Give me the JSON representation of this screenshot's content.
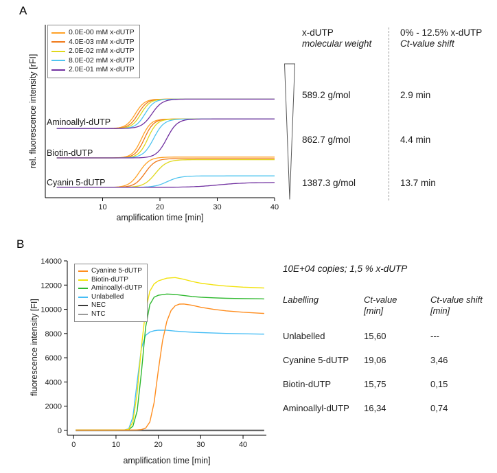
{
  "panel_a": {
    "label": "A",
    "table": {
      "col1_header_line1": "x-dUTP",
      "col1_header_line2": "molecular weight",
      "col2_header_line1": "0% - 12.5% x-dUTP",
      "col2_header_line2": "Ct-value shift",
      "rows": [
        {
          "mw": "589.2 g/mol",
          "shift": "2.9 min"
        },
        {
          "mw": "862.7 g/mol",
          "shift": "4.4 min"
        },
        {
          "mw": "1387.3 g/mol",
          "shift": "13.7 min"
        }
      ]
    }
  },
  "panel_b": {
    "label": "B",
    "table": {
      "title": "10E+04 copies; 1,5 % x-dUTP",
      "headers": [
        [
          "Labelling",
          ""
        ],
        [
          "Ct-value",
          "[min]"
        ],
        [
          "Ct-value shift",
          "[min]"
        ]
      ],
      "rows": [
        [
          "Unlabelled",
          "15,60",
          "---"
        ],
        [
          "Cyanine 5-dUTP",
          "19,06",
          "3,46"
        ],
        [
          "Biotin-dUTP",
          "15,75",
          "0,15"
        ],
        [
          "Aminoallyl-dUTP",
          "16,34",
          "0,74"
        ]
      ]
    }
  },
  "chart_data": [
    {
      "type": "line",
      "title": "",
      "xlabel": "amplification time [min]",
      "ylabel": "rel. fluorescence intensity [rFI]",
      "xlim": [
        0,
        40
      ],
      "xticks": [
        10,
        20,
        30,
        40
      ],
      "ylim": [
        0,
        100
      ],
      "y_units_note": "arbitrary relative units, no y tick labels shown; three curve groups stacked vertically",
      "legend": [
        "0.0E-00 mM x-dUTP",
        "4.0E-03 mM x-dUTP",
        "2.0E-02 mM x-dUTP",
        "8.0E-02 mM x-dUTP",
        "2.0E-01 mM x-dUTP"
      ],
      "legend_colors": [
        "#FFA126",
        "#F07818",
        "#E0D81C",
        "#4FC4EF",
        "#7030A0"
      ],
      "legend_position": "top-left inside plot",
      "groups": [
        "Aminoallyl-dUTP",
        "Biotin-dUTP",
        "Cyanin 5-dUTP"
      ],
      "curve_model": "logistic: y = baseline + (plateau-baseline)/(1+exp(-(x-midpoint)/width)), x from 2 to 40 min",
      "series": [
        {
          "group": "Aminoallyl-dUTP",
          "legend_index": 0,
          "baseline": 40,
          "plateau": 57,
          "midpoint_min": 15.7,
          "rise_width_min": 0.8
        },
        {
          "group": "Aminoallyl-dUTP",
          "legend_index": 1,
          "baseline": 40,
          "plateau": 57,
          "midpoint_min": 16.2,
          "rise_width_min": 0.8
        },
        {
          "group": "Aminoallyl-dUTP",
          "legend_index": 2,
          "baseline": 40,
          "plateau": 57,
          "midpoint_min": 16.7,
          "rise_width_min": 0.8
        },
        {
          "group": "Aminoallyl-dUTP",
          "legend_index": 3,
          "baseline": 40,
          "plateau": 57,
          "midpoint_min": 17.4,
          "rise_width_min": 0.8
        },
        {
          "group": "Aminoallyl-dUTP",
          "legend_index": 4,
          "baseline": 40,
          "plateau": 57,
          "midpoint_min": 18.6,
          "rise_width_min": 0.9
        },
        {
          "group": "Biotin-dUTP",
          "legend_index": 0,
          "baseline": 23,
          "plateau": 45.5,
          "midpoint_min": 16.8,
          "rise_width_min": 0.8
        },
        {
          "group": "Biotin-dUTP",
          "legend_index": 1,
          "baseline": 23,
          "plateau": 45.5,
          "midpoint_min": 17.3,
          "rise_width_min": 0.8
        },
        {
          "group": "Biotin-dUTP",
          "legend_index": 2,
          "baseline": 23,
          "plateau": 45.5,
          "midpoint_min": 17.9,
          "rise_width_min": 0.8
        },
        {
          "group": "Biotin-dUTP",
          "legend_index": 3,
          "baseline": 23,
          "plateau": 45.5,
          "midpoint_min": 18.9,
          "rise_width_min": 0.9
        },
        {
          "group": "Biotin-dUTP",
          "legend_index": 4,
          "baseline": 23,
          "plateau": 45.5,
          "midpoint_min": 21.2,
          "rise_width_min": 0.9
        },
        {
          "group": "Cyanin 5-dUTP",
          "legend_index": 0,
          "baseline": 6,
          "plateau": 23.5,
          "midpoint_min": 16.4,
          "rise_width_min": 0.9
        },
        {
          "group": "Cyanin 5-dUTP",
          "legend_index": 1,
          "baseline": 6,
          "plateau": 22.6,
          "midpoint_min": 17.4,
          "rise_width_min": 0.9
        },
        {
          "group": "Cyanin 5-dUTP",
          "legend_index": 2,
          "baseline": 6,
          "plateau": 22.0,
          "midpoint_min": 19.2,
          "rise_width_min": 1.0
        },
        {
          "group": "Cyanin 5-dUTP",
          "legend_index": 3,
          "baseline": 6,
          "plateau": 12.6,
          "midpoint_min": 21.3,
          "rise_width_min": 1.1
        },
        {
          "group": "Cyanin 5-dUTP",
          "legend_index": 4,
          "baseline": 6,
          "plateau": 8.8,
          "midpoint_min": 30.2,
          "rise_width_min": 2.3
        }
      ]
    },
    {
      "type": "line",
      "title": "",
      "xlabel": "amplification time [min]",
      "ylabel": "fluorescence intensity [FI]",
      "xlim": [
        -1.5,
        45.5
      ],
      "xticks": [
        0,
        10,
        20,
        30,
        40
      ],
      "ylim": [
        -400,
        14000
      ],
      "yticks": [
        0,
        2000,
        4000,
        6000,
        8000,
        10000,
        12000,
        14000
      ],
      "legend_position": "top-left inside plot",
      "series": [
        {
          "name": "Cyanine 5-dUTP",
          "color": "#FF8D1E",
          "points": [
            [
              0.5,
              25
            ],
            [
              5,
              25
            ],
            [
              10,
              28
            ],
            [
              13,
              30
            ],
            [
              15,
              40
            ],
            [
              16,
              70
            ],
            [
              17,
              180
            ],
            [
              18,
              700
            ],
            [
              19,
              2300
            ],
            [
              20,
              5000
            ],
            [
              21,
              7400
            ],
            [
              22,
              9000
            ],
            [
              23,
              9900
            ],
            [
              24,
              10300
            ],
            [
              25,
              10430
            ],
            [
              26,
              10440
            ],
            [
              28,
              10330
            ],
            [
              30,
              10170
            ],
            [
              33,
              10000
            ],
            [
              36,
              9870
            ],
            [
              40,
              9760
            ],
            [
              45,
              9660
            ]
          ]
        },
        {
          "name": "Biotin-dUTP",
          "color": "#F2E20D",
          "points": [
            [
              0.5,
              25
            ],
            [
              5,
              25
            ],
            [
              10,
              30
            ],
            [
              12,
              40
            ],
            [
              13,
              90
            ],
            [
              14,
              700
            ],
            [
              15,
              3100
            ],
            [
              16,
              6900
            ],
            [
              17,
              9900
            ],
            [
              18,
              11500
            ],
            [
              19,
              12100
            ],
            [
              20,
              12350
            ],
            [
              22,
              12570
            ],
            [
              24,
              12620
            ],
            [
              26,
              12480
            ],
            [
              28,
              12300
            ],
            [
              30,
              12160
            ],
            [
              33,
              12020
            ],
            [
              36,
              11920
            ],
            [
              40,
              11830
            ],
            [
              45,
              11760
            ]
          ]
        },
        {
          "name": "Aminoallyl-dUTP",
          "color": "#2EB82E",
          "points": [
            [
              0.5,
              25
            ],
            [
              5,
              25
            ],
            [
              10,
              28
            ],
            [
              12,
              35
            ],
            [
              13,
              70
            ],
            [
              14,
              350
            ],
            [
              15,
              1600
            ],
            [
              16,
              4800
            ],
            [
              17,
              8500
            ],
            [
              18,
              10400
            ],
            [
              19,
              11000
            ],
            [
              20,
              11160
            ],
            [
              22,
              11260
            ],
            [
              24,
              11230
            ],
            [
              26,
              11140
            ],
            [
              28,
              11060
            ],
            [
              30,
              11000
            ],
            [
              33,
              10950
            ],
            [
              36,
              10910
            ],
            [
              40,
              10880
            ],
            [
              45,
              10860
            ]
          ]
        },
        {
          "name": "Unlabelled",
          "color": "#45BDF5",
          "points": [
            [
              0.5,
              25
            ],
            [
              5,
              25
            ],
            [
              10,
              28
            ],
            [
              12,
              45
            ],
            [
              13,
              130
            ],
            [
              14,
              1100
            ],
            [
              15,
              4000
            ],
            [
              16,
              6800
            ],
            [
              17,
              7850
            ],
            [
              18,
              8120
            ],
            [
              19,
              8230
            ],
            [
              20,
              8280
            ],
            [
              22,
              8270
            ],
            [
              24,
              8200
            ],
            [
              26,
              8150
            ],
            [
              28,
              8110
            ],
            [
              30,
              8080
            ],
            [
              33,
              8040
            ],
            [
              36,
              8010
            ],
            [
              40,
              7980
            ],
            [
              45,
              7950
            ]
          ]
        },
        {
          "name": "NEC",
          "color": "#3A3A3A",
          "points": [
            [
              0.5,
              20
            ],
            [
              10,
              20
            ],
            [
              20,
              20
            ],
            [
              30,
              20
            ],
            [
              40,
              20
            ],
            [
              45,
              20
            ]
          ]
        },
        {
          "name": "NTC",
          "color": "#9A9A9A",
          "points": [
            [
              0.5,
              -30
            ],
            [
              10,
              -30
            ],
            [
              20,
              -30
            ],
            [
              30,
              -30
            ],
            [
              40,
              -30
            ],
            [
              45,
              -30
            ]
          ]
        }
      ]
    }
  ]
}
